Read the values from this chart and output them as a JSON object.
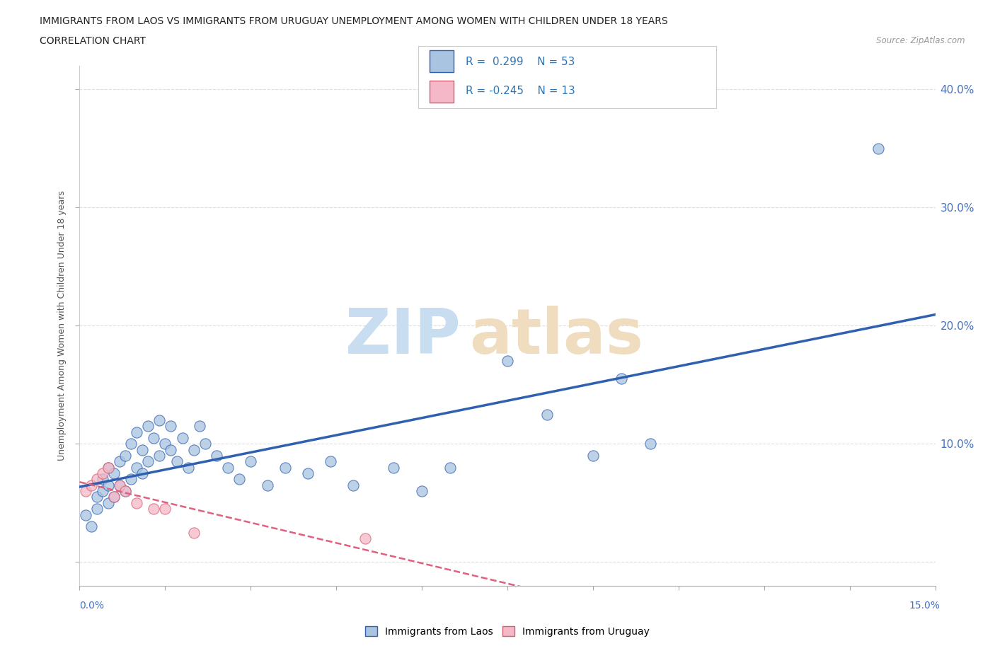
{
  "title_line1": "IMMIGRANTS FROM LAOS VS IMMIGRANTS FROM URUGUAY UNEMPLOYMENT AMONG WOMEN WITH CHILDREN UNDER 18 YEARS",
  "title_line2": "CORRELATION CHART",
  "source_text": "Source: ZipAtlas.com",
  "ylabel": "Unemployment Among Women with Children Under 18 years",
  "ytick_labels": [
    "",
    "10.0%",
    "20.0%",
    "30.0%",
    "40.0%"
  ],
  "ytick_values": [
    0.0,
    0.1,
    0.2,
    0.3,
    0.4
  ],
  "xlim": [
    0.0,
    0.15
  ],
  "ylim": [
    -0.02,
    0.42
  ],
  "legend_laos_label": "Immigrants from Laos",
  "legend_uruguay_label": "Immigrants from Uruguay",
  "r_laos": "0.299",
  "n_laos": "53",
  "r_uruguay": "-0.245",
  "n_uruguay": "13",
  "color_laos": "#a8c4e0",
  "color_uruguay": "#f4b8c8",
  "line_laos": "#3060b0",
  "line_uruguay": "#e06080",
  "laos_x": [
    0.001,
    0.002,
    0.003,
    0.003,
    0.004,
    0.004,
    0.005,
    0.005,
    0.005,
    0.006,
    0.006,
    0.007,
    0.007,
    0.008,
    0.008,
    0.009,
    0.009,
    0.01,
    0.01,
    0.011,
    0.011,
    0.012,
    0.012,
    0.013,
    0.014,
    0.014,
    0.015,
    0.016,
    0.016,
    0.017,
    0.018,
    0.019,
    0.02,
    0.021,
    0.022,
    0.024,
    0.026,
    0.028,
    0.03,
    0.033,
    0.036,
    0.04,
    0.044,
    0.048,
    0.055,
    0.06,
    0.065,
    0.075,
    0.082,
    0.09,
    0.095,
    0.1,
    0.14
  ],
  "laos_y": [
    0.04,
    0.03,
    0.055,
    0.045,
    0.06,
    0.07,
    0.05,
    0.065,
    0.08,
    0.055,
    0.075,
    0.065,
    0.085,
    0.06,
    0.09,
    0.07,
    0.1,
    0.08,
    0.11,
    0.075,
    0.095,
    0.085,
    0.115,
    0.105,
    0.09,
    0.12,
    0.1,
    0.095,
    0.115,
    0.085,
    0.105,
    0.08,
    0.095,
    0.115,
    0.1,
    0.09,
    0.08,
    0.07,
    0.085,
    0.065,
    0.08,
    0.075,
    0.085,
    0.065,
    0.08,
    0.06,
    0.08,
    0.17,
    0.125,
    0.09,
    0.155,
    0.1,
    0.35
  ],
  "uruguay_x": [
    0.001,
    0.002,
    0.003,
    0.004,
    0.005,
    0.006,
    0.007,
    0.008,
    0.01,
    0.013,
    0.015,
    0.02,
    0.05
  ],
  "uruguay_y": [
    0.06,
    0.065,
    0.07,
    0.075,
    0.08,
    0.055,
    0.065,
    0.06,
    0.05,
    0.045,
    0.045,
    0.025,
    0.02
  ]
}
